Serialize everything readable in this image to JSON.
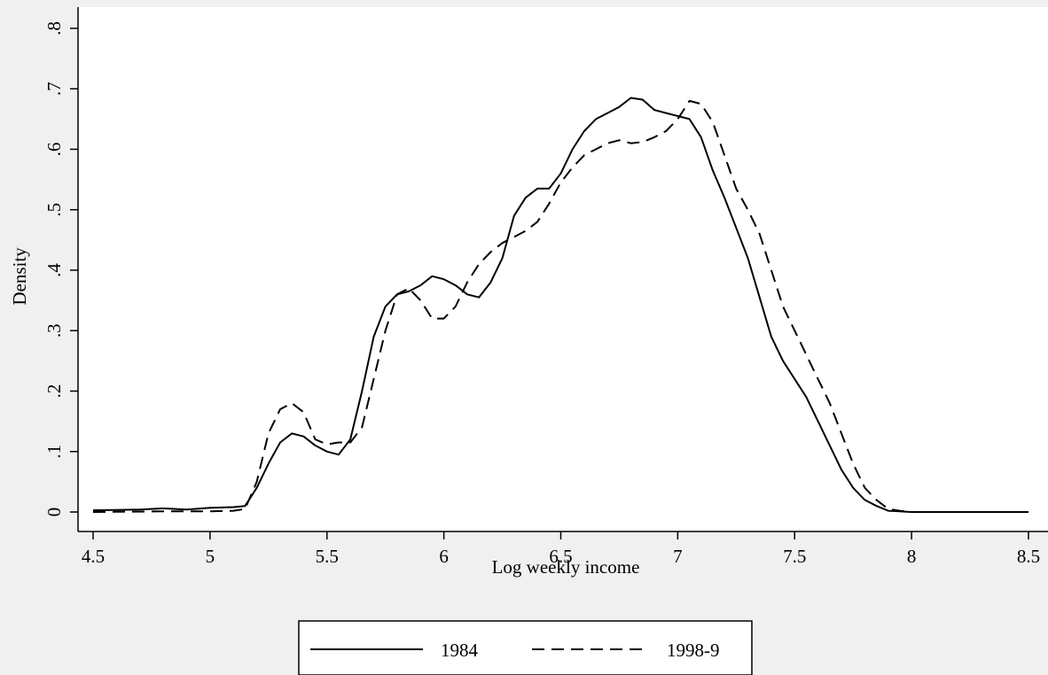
{
  "chart_data": {
    "type": "line",
    "title": "",
    "xlabel": "Log weekly income",
    "ylabel": "Density",
    "xlim": [
      4.5,
      8.5
    ],
    "ylim": [
      0,
      0.8
    ],
    "x_ticks": [
      4.5,
      5,
      5.5,
      6,
      6.5,
      7,
      7.5,
      8,
      8.5
    ],
    "x_tick_labels": [
      "4.5",
      "5",
      "5.5",
      "6",
      "6.5",
      "7",
      "7.5",
      "8",
      "8.5"
    ],
    "y_ticks": [
      0,
      0.1,
      0.2,
      0.3,
      0.4,
      0.5,
      0.6,
      0.7,
      0.8
    ],
    "y_tick_labels": [
      "0",
      ".1",
      ".2",
      ".3",
      ".4",
      ".5",
      ".6",
      ".7",
      ".8"
    ],
    "grid": false,
    "legend_position": "bottom-center",
    "series": [
      {
        "name": "1984",
        "style": "solid",
        "color": "#000000",
        "x": [
          4.5,
          4.7,
          4.8,
          4.9,
          5.0,
          5.1,
          5.15,
          5.2,
          5.25,
          5.3,
          5.35,
          5.4,
          5.45,
          5.5,
          5.55,
          5.6,
          5.65,
          5.7,
          5.75,
          5.8,
          5.85,
          5.9,
          5.95,
          6.0,
          6.05,
          6.1,
          6.15,
          6.2,
          6.25,
          6.3,
          6.35,
          6.4,
          6.45,
          6.5,
          6.55,
          6.6,
          6.65,
          6.7,
          6.75,
          6.8,
          6.85,
          6.9,
          6.95,
          7.0,
          7.05,
          7.1,
          7.15,
          7.2,
          7.25,
          7.3,
          7.35,
          7.4,
          7.45,
          7.5,
          7.55,
          7.6,
          7.65,
          7.7,
          7.75,
          7.8,
          7.85,
          7.9,
          7.95,
          8.0,
          8.5
        ],
        "values": [
          0.003,
          0.004,
          0.006,
          0.004,
          0.007,
          0.008,
          0.01,
          0.04,
          0.08,
          0.115,
          0.13,
          0.125,
          0.11,
          0.1,
          0.095,
          0.12,
          0.2,
          0.29,
          0.34,
          0.36,
          0.365,
          0.375,
          0.39,
          0.385,
          0.375,
          0.36,
          0.355,
          0.38,
          0.42,
          0.49,
          0.52,
          0.535,
          0.535,
          0.56,
          0.6,
          0.63,
          0.65,
          0.66,
          0.67,
          0.685,
          0.682,
          0.665,
          0.66,
          0.655,
          0.65,
          0.62,
          0.565,
          0.52,
          0.47,
          0.42,
          0.355,
          0.29,
          0.25,
          0.22,
          0.19,
          0.15,
          0.11,
          0.07,
          0.04,
          0.02,
          0.01,
          0.002,
          0.001,
          0.0,
          0.0
        ]
      },
      {
        "name": "1998-9",
        "style": "dashed",
        "color": "#000000",
        "x": [
          4.5,
          4.8,
          5.0,
          5.1,
          5.15,
          5.2,
          5.25,
          5.3,
          5.35,
          5.4,
          5.45,
          5.5,
          5.55,
          5.6,
          5.65,
          5.7,
          5.75,
          5.8,
          5.85,
          5.9,
          5.95,
          6.0,
          6.05,
          6.1,
          6.15,
          6.2,
          6.25,
          6.3,
          6.35,
          6.4,
          6.45,
          6.5,
          6.55,
          6.6,
          6.65,
          6.7,
          6.75,
          6.8,
          6.85,
          6.9,
          6.95,
          7.0,
          7.05,
          7.1,
          7.15,
          7.2,
          7.25,
          7.3,
          7.35,
          7.4,
          7.45,
          7.5,
          7.55,
          7.6,
          7.65,
          7.7,
          7.75,
          7.8,
          7.85,
          7.9,
          7.95,
          8.0,
          8.5
        ],
        "values": [
          0.0,
          0.001,
          0.001,
          0.002,
          0.005,
          0.05,
          0.13,
          0.17,
          0.18,
          0.165,
          0.12,
          0.112,
          0.115,
          0.115,
          0.14,
          0.22,
          0.3,
          0.36,
          0.37,
          0.35,
          0.32,
          0.32,
          0.34,
          0.38,
          0.41,
          0.43,
          0.445,
          0.455,
          0.465,
          0.48,
          0.51,
          0.545,
          0.57,
          0.59,
          0.6,
          0.61,
          0.615,
          0.61,
          0.612,
          0.62,
          0.63,
          0.65,
          0.68,
          0.675,
          0.645,
          0.59,
          0.535,
          0.5,
          0.46,
          0.4,
          0.34,
          0.3,
          0.26,
          0.22,
          0.18,
          0.13,
          0.08,
          0.04,
          0.02,
          0.005,
          0.002,
          0.0,
          0.0
        ]
      }
    ]
  },
  "colors": {
    "background": "#f0f0f0",
    "plot_area": "#ffffff",
    "ink": "#000000"
  }
}
